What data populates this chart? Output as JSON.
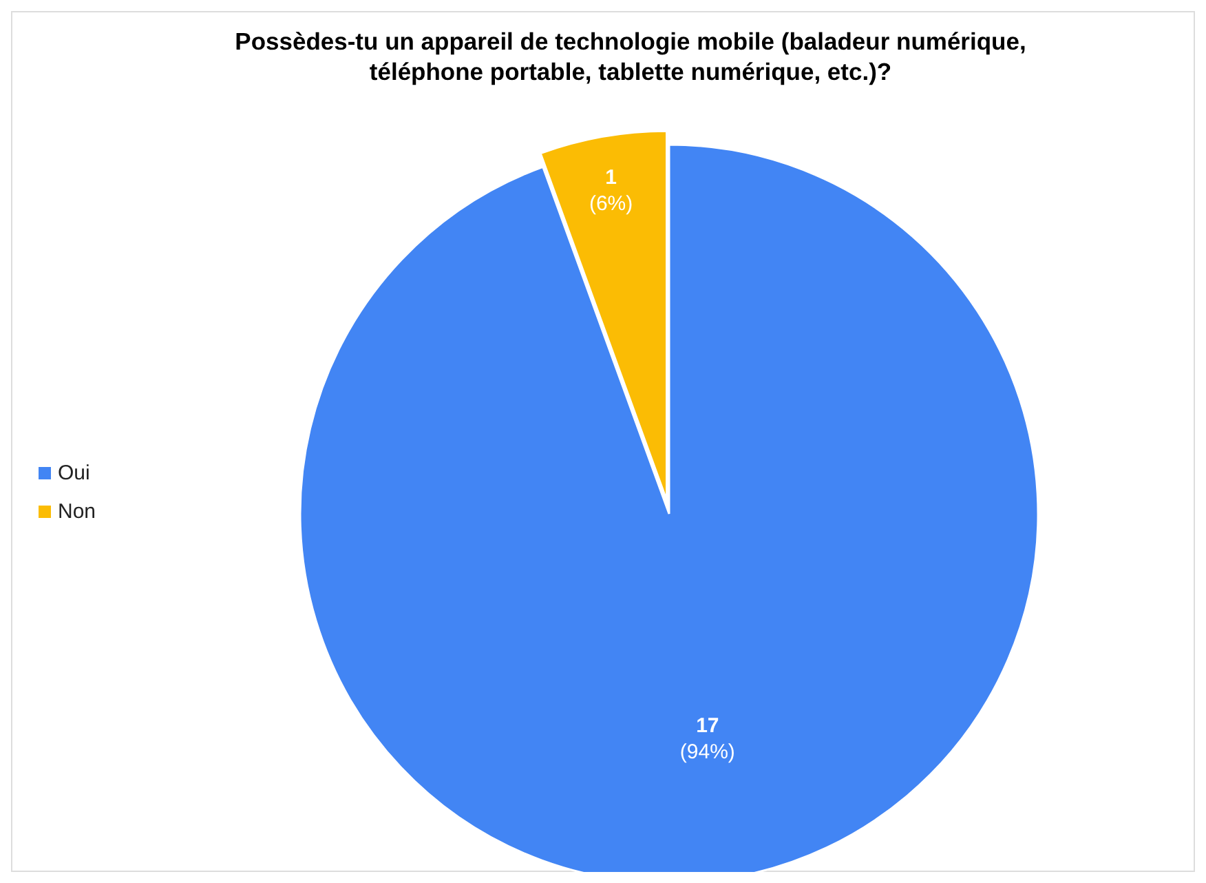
{
  "chart_data": {
    "type": "pie",
    "title": "Possèdes-tu un appareil de technologie mobile (baladeur numérique, téléphone portable, tablette numérique, etc.)?",
    "categories": [
      "Oui",
      "Non"
    ],
    "values": [
      17,
      1
    ],
    "colors": [
      "#4285f4",
      "#fbbc04"
    ],
    "value_labels": [
      "17\n(94%)",
      "1\n(6%)"
    ],
    "legend": "left"
  }
}
